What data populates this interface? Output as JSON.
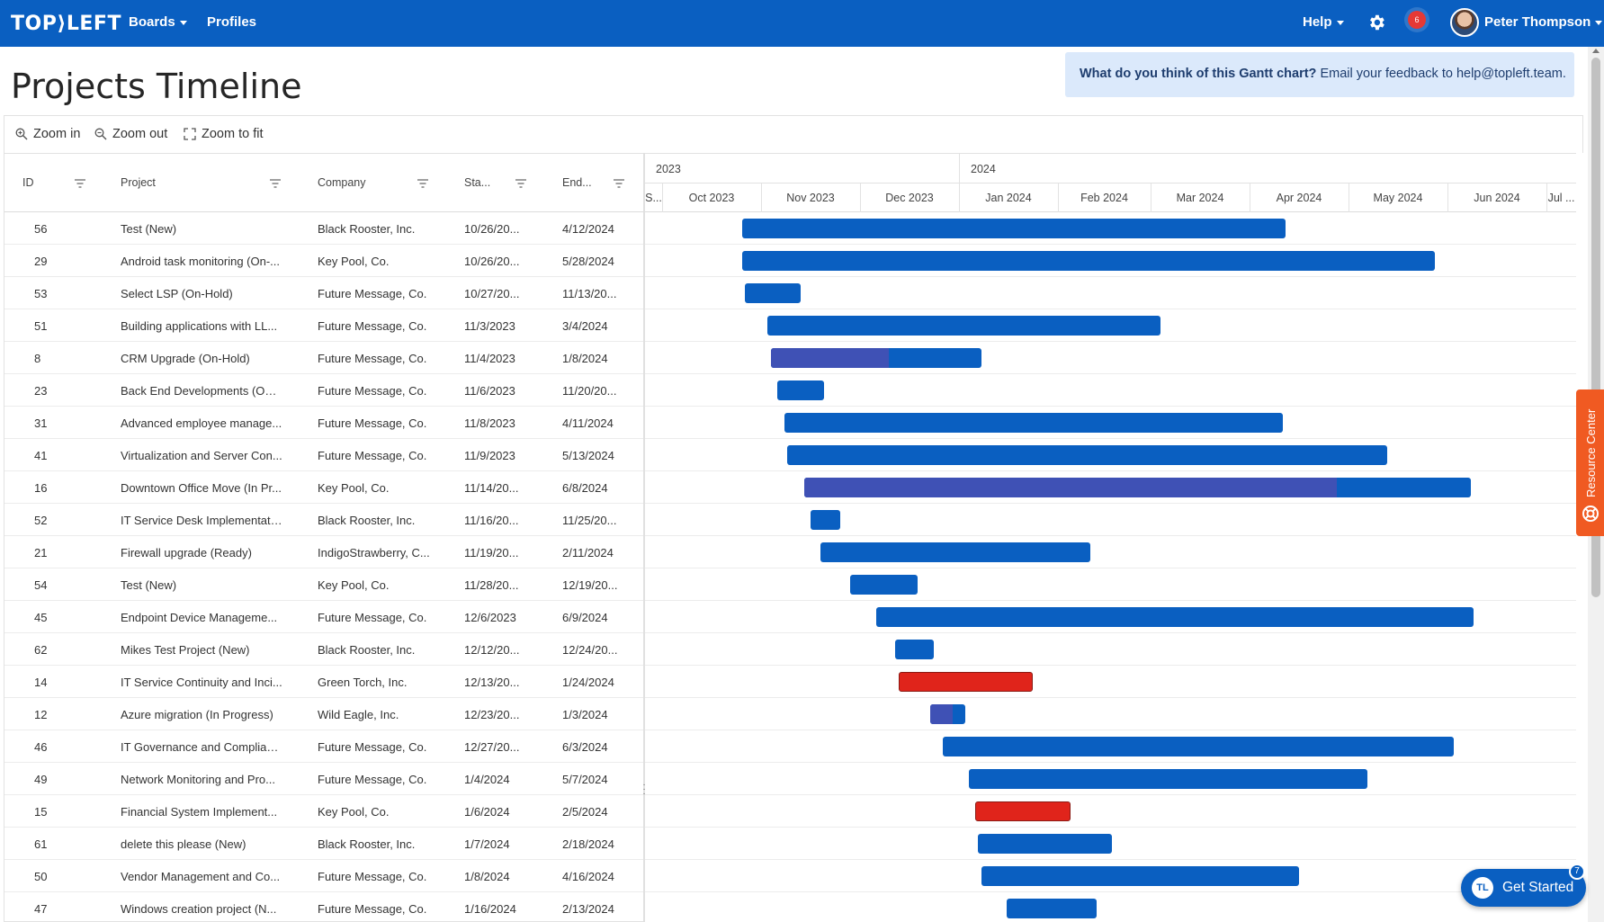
{
  "nav": {
    "logo": "TOP⟩LEFT",
    "boards_label": "Boards",
    "profiles_label": "Profiles",
    "help_label": "Help",
    "notification_count": "6",
    "user_name": "Peter Thompson"
  },
  "header": {
    "title": "Projects Timeline",
    "feedback_question": "What do you think of this Gantt chart?",
    "feedback_text": "Email your feedback to help@topleft.team."
  },
  "toolbar": {
    "zoom_in": "Zoom in",
    "zoom_out": "Zoom out",
    "zoom_fit": "Zoom to fit"
  },
  "grid": {
    "columns": [
      "ID",
      "Project",
      "Company",
      "Sta...",
      "End..."
    ],
    "rows": [
      {
        "id": "56",
        "project": "Test (New)",
        "company": "Black Rooster, Inc.",
        "start": "10/26/20...",
        "end": "4/12/2024"
      },
      {
        "id": "29",
        "project": "Android task monitoring (On-...",
        "company": "Key Pool, Co.",
        "start": "10/26/20...",
        "end": "5/28/2024"
      },
      {
        "id": "53",
        "project": "Select LSP (On-Hold)",
        "company": "Future Message, Co.",
        "start": "10/27/20...",
        "end": "11/13/20..."
      },
      {
        "id": "51",
        "project": "Building applications with LL...",
        "company": "Future Message, Co.",
        "start": "11/3/2023",
        "end": "3/4/2024"
      },
      {
        "id": "8",
        "project": "CRM Upgrade (On-Hold)",
        "company": "Future Message, Co.",
        "start": "11/4/2023",
        "end": "1/8/2024"
      },
      {
        "id": "23",
        "project": "Back End Developments (On-...",
        "company": "Future Message, Co.",
        "start": "11/6/2023",
        "end": "11/20/20..."
      },
      {
        "id": "31",
        "project": "Advanced employee manage...",
        "company": "Future Message, Co.",
        "start": "11/8/2023",
        "end": "4/11/2024"
      },
      {
        "id": "41",
        "project": "Virtualization and Server Con...",
        "company": "Future Message, Co.",
        "start": "11/9/2023",
        "end": "5/13/2024"
      },
      {
        "id": "16",
        "project": "Downtown Office Move (In Pr...",
        "company": "Key Pool, Co.",
        "start": "11/14/20...",
        "end": "6/8/2024"
      },
      {
        "id": "52",
        "project": "IT Service Desk Implementati...",
        "company": "Black Rooster, Inc.",
        "start": "11/16/20...",
        "end": "11/25/20..."
      },
      {
        "id": "21",
        "project": "Firewall upgrade (Ready)",
        "company": "IndigoStrawberry, C...",
        "start": "11/19/20...",
        "end": "2/11/2024"
      },
      {
        "id": "54",
        "project": "Test (New)",
        "company": "Key Pool, Co.",
        "start": "11/28/20...",
        "end": "12/19/20..."
      },
      {
        "id": "45",
        "project": "Endpoint Device Manageme...",
        "company": "Future Message, Co.",
        "start": "12/6/2023",
        "end": "6/9/2024"
      },
      {
        "id": "62",
        "project": "Mikes Test Project (New)",
        "company": "Black Rooster, Inc.",
        "start": "12/12/20...",
        "end": "12/24/20..."
      },
      {
        "id": "14",
        "project": "IT Service Continuity and Inci...",
        "company": "Green Torch, Inc.",
        "start": "12/13/20...",
        "end": "1/24/2024"
      },
      {
        "id": "12",
        "project": "Azure migration (In Progress)",
        "company": "Wild Eagle, Inc.",
        "start": "12/23/20...",
        "end": "1/3/2024"
      },
      {
        "id": "46",
        "project": "IT Governance and Complian...",
        "company": "Future Message, Co.",
        "start": "12/27/20...",
        "end": "6/3/2024"
      },
      {
        "id": "49",
        "project": "Network Monitoring and Pro...",
        "company": "Future Message, Co.",
        "start": "1/4/2024",
        "end": "5/7/2024"
      },
      {
        "id": "15",
        "project": "Financial System Implement...",
        "company": "Key Pool, Co.",
        "start": "1/6/2024",
        "end": "2/5/2024"
      },
      {
        "id": "61",
        "project": "delete this please (New)",
        "company": "Black Rooster, Inc.",
        "start": "1/7/2024",
        "end": "2/18/2024"
      },
      {
        "id": "50",
        "project": "Vendor Management and Co...",
        "company": "Future Message, Co.",
        "start": "1/8/2024",
        "end": "4/16/2024"
      },
      {
        "id": "47",
        "project": "Windows creation project (N...",
        "company": "Future Message, Co.",
        "start": "1/16/2024",
        "end": "2/13/2024"
      }
    ]
  },
  "timeline": {
    "years": [
      "2023",
      "2024"
    ],
    "months": [
      "S...",
      "Oct 2023",
      "Nov 2023",
      "Dec 2023",
      "Jan 2024",
      "Feb 2024",
      "Mar 2024",
      "Apr 2024",
      "May 2024",
      "Jun 2024",
      "Jul ..."
    ],
    "bars": [
      {
        "start": "2023-10-26",
        "end": "2024-04-12",
        "color": "#0a5fc1",
        "progress": 0
      },
      {
        "start": "2023-10-26",
        "end": "2024-05-28",
        "color": "#0a5fc1",
        "progress": 0
      },
      {
        "start": "2023-10-27",
        "end": "2023-11-13",
        "color": "#0a5fc1",
        "progress": 0
      },
      {
        "start": "2023-11-03",
        "end": "2024-03-04",
        "color": "#0a5fc1",
        "progress": 0
      },
      {
        "start": "2023-11-04",
        "end": "2024-01-08",
        "color": "#0a5fc1",
        "progress": 0.56
      },
      {
        "start": "2023-11-06",
        "end": "2023-11-20",
        "color": "#0a5fc1",
        "progress": 0
      },
      {
        "start": "2023-11-08",
        "end": "2024-04-11",
        "color": "#0a5fc1",
        "progress": 0
      },
      {
        "start": "2023-11-09",
        "end": "2024-05-13",
        "color": "#0a5fc1",
        "progress": 0
      },
      {
        "start": "2023-11-14",
        "end": "2024-06-08",
        "color": "#0a5fc1",
        "progress": 0.8
      },
      {
        "start": "2023-11-16",
        "end": "2023-11-25",
        "color": "#0a5fc1",
        "progress": 0
      },
      {
        "start": "2023-11-19",
        "end": "2024-02-11",
        "color": "#0a5fc1",
        "progress": 0
      },
      {
        "start": "2023-11-28",
        "end": "2023-12-19",
        "color": "#0a5fc1",
        "progress": 0
      },
      {
        "start": "2023-12-06",
        "end": "2024-06-09",
        "color": "#0a5fc1",
        "progress": 0
      },
      {
        "start": "2023-12-12",
        "end": "2023-12-24",
        "color": "#0a5fc1",
        "progress": 0
      },
      {
        "start": "2023-12-13",
        "end": "2024-01-24",
        "color": "#e0241b",
        "progress": 0
      },
      {
        "start": "2023-12-23",
        "end": "2024-01-03",
        "color": "#0a5fc1",
        "progress": 0.65
      },
      {
        "start": "2023-12-27",
        "end": "2024-06-03",
        "color": "#0a5fc1",
        "progress": 0
      },
      {
        "start": "2024-01-04",
        "end": "2024-05-07",
        "color": "#0a5fc1",
        "progress": 0
      },
      {
        "start": "2024-01-06",
        "end": "2024-02-05",
        "color": "#e0241b",
        "progress": 0
      },
      {
        "start": "2024-01-07",
        "end": "2024-02-18",
        "color": "#0a5fc1",
        "progress": 0
      },
      {
        "start": "2024-01-08",
        "end": "2024-04-16",
        "color": "#0a5fc1",
        "progress": 0
      },
      {
        "start": "2024-01-16",
        "end": "2024-02-13",
        "color": "#0a5fc1",
        "progress": 0
      }
    ]
  },
  "widgets": {
    "resource_center": "Resource Center",
    "get_started": "Get Started",
    "get_started_badge": "7",
    "get_started_logo": "TL"
  }
}
